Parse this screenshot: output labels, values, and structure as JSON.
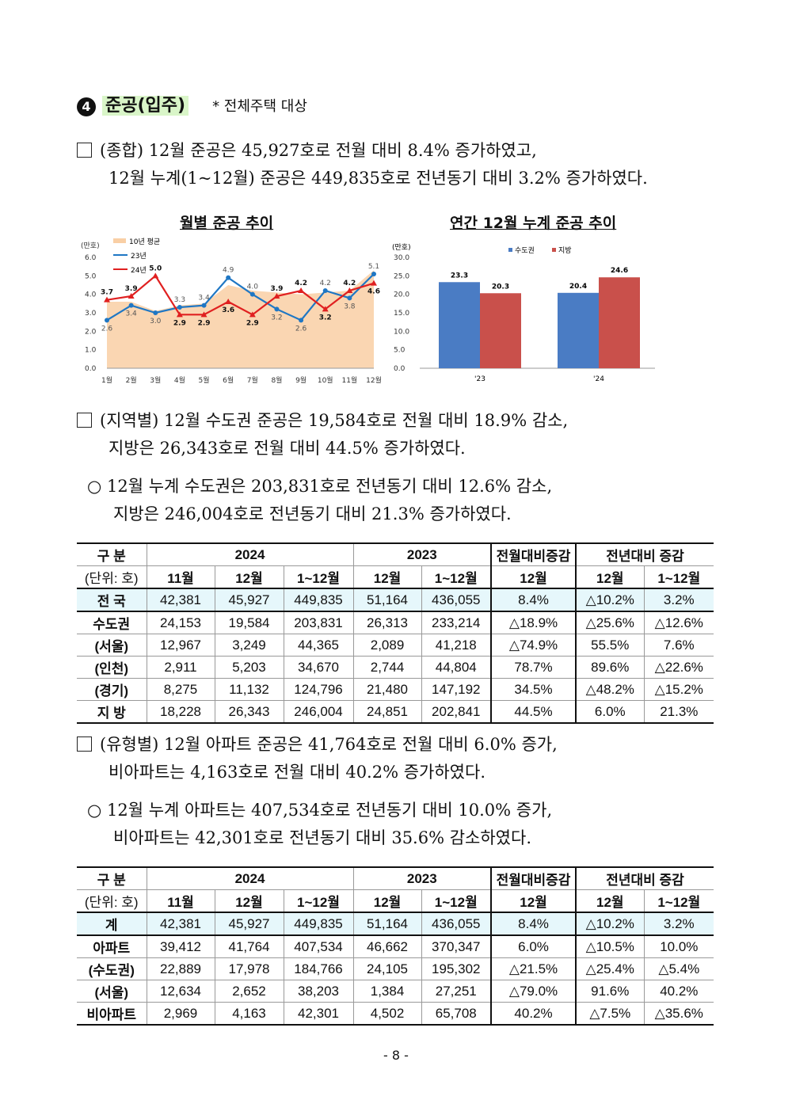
{
  "section": {
    "number": "4",
    "title": "준공(입주)",
    "note": "* 전체주택 대상"
  },
  "para1": {
    "line1": "(종합) 12월 준공은 45,927호로 전월 대비 8.4% 증가하였고,",
    "line2": "12월 누계(1~12월) 준공은 449,835호로 전년동기 대비 3.2% 증가하였다."
  },
  "para2": {
    "line1": "(지역별) 12월 수도권 준공은 19,584호로 전월 대비 18.9% 감소,",
    "line2": "지방은 26,343호로 전월 대비 44.5% 증가하였다."
  },
  "para3": {
    "line1": "12월 누계 수도권은 203,831호로 전년동기 대비 12.6% 감소,",
    "line2": "지방은 246,004호로 전년동기 대비 21.3% 증가하였다."
  },
  "para4": {
    "line1": "(유형별) 12월 아파트 준공은 41,764호로 전월 대비 6.0% 증가,",
    "line2": "비아파트는 4,163호로 전월 대비 40.2% 증가하였다."
  },
  "para5": {
    "line1": "12월 누계 아파트는 407,534호로 전년동기 대비 10.0% 증가,",
    "line2": "비아파트는 42,301호로 전년동기 대비 35.6% 감소하였다."
  },
  "chart_data": [
    {
      "type": "line",
      "title": "월별 준공 추이",
      "unit": "(만호)",
      "ylim": [
        0,
        6
      ],
      "yticks": [
        "0.0",
        "1.0",
        "2.0",
        "3.0",
        "4.0",
        "5.0",
        "6.0"
      ],
      "categories": [
        "1월",
        "2월",
        "3월",
        "4월",
        "5월",
        "6월",
        "7월",
        "8월",
        "9월",
        "10월",
        "11월",
        "12월"
      ],
      "series": [
        {
          "name": "10년 평균",
          "kind": "area",
          "color": "#f9cfa5",
          "values": [
            3.6,
            3.6,
            3.1,
            3.4,
            3.5,
            4.5,
            4.2,
            4.1,
            4.0,
            4.1,
            4.2,
            5.3
          ]
        },
        {
          "name": "23년",
          "color": "#1f77c4",
          "values": [
            2.6,
            3.4,
            3.0,
            3.3,
            3.4,
            4.9,
            4.0,
            3.2,
            2.6,
            4.2,
            3.8,
            5.1
          ]
        },
        {
          "name": "24년",
          "color": "#e02020",
          "values": [
            3.7,
            3.9,
            5.0,
            2.9,
            2.9,
            3.6,
            2.9,
            3.9,
            4.2,
            3.2,
            4.2,
            4.6
          ]
        }
      ]
    },
    {
      "type": "bar",
      "title": "연간 12월 누계 준공 추이",
      "unit": "(만호)",
      "ylim": [
        0,
        30
      ],
      "yticks": [
        "0.0",
        "5.0",
        "10.0",
        "15.0",
        "20.0",
        "25.0",
        "30.0"
      ],
      "categories": [
        "'23",
        "'24"
      ],
      "series": [
        {
          "name": "수도권",
          "color": "#4a7cc4",
          "values": [
            23.3,
            20.4
          ]
        },
        {
          "name": "지방",
          "color": "#c9504b",
          "values": [
            20.3,
            24.6
          ]
        }
      ]
    }
  ],
  "table1": {
    "header1": [
      "구 분",
      "2024",
      "2023",
      "전월대비증감",
      "전년대비 증감"
    ],
    "header2": [
      "(단위: 호)",
      "11월",
      "12월",
      "1~12월",
      "12월",
      "1~12월",
      "12월",
      "12월",
      "1~12월"
    ],
    "rows": [
      [
        "전 국",
        "42,381",
        "45,927",
        "449,835",
        "51,164",
        "436,055",
        "8.4%",
        "△10.2%",
        "3.2%"
      ],
      [
        "수도권",
        "24,153",
        "19,584",
        "203,831",
        "26,313",
        "233,214",
        "△18.9%",
        "△25.6%",
        "△12.6%"
      ],
      [
        "(서울)",
        "12,967",
        "3,249",
        "44,365",
        "2,089",
        "41,218",
        "△74.9%",
        "55.5%",
        "7.6%"
      ],
      [
        "(인천)",
        "2,911",
        "5,203",
        "34,670",
        "2,744",
        "44,804",
        "78.7%",
        "89.6%",
        "△22.6%"
      ],
      [
        "(경기)",
        "8,275",
        "11,132",
        "124,796",
        "21,480",
        "147,192",
        "34.5%",
        "△48.2%",
        "△15.2%"
      ],
      [
        "지 방",
        "18,228",
        "26,343",
        "246,004",
        "24,851",
        "202,841",
        "44.5%",
        "6.0%",
        "21.3%"
      ]
    ]
  },
  "table2": {
    "header1": [
      "구 분",
      "2024",
      "2023",
      "전월대비증감",
      "전년대비 증감"
    ],
    "header2": [
      "(단위: 호)",
      "11월",
      "12월",
      "1~12월",
      "12월",
      "1~12월",
      "12월",
      "12월",
      "1~12월"
    ],
    "rows": [
      [
        "계",
        "42,381",
        "45,927",
        "449,835",
        "51,164",
        "436,055",
        "8.4%",
        "△10.2%",
        "3.2%"
      ],
      [
        "아파트",
        "39,412",
        "41,764",
        "407,534",
        "46,662",
        "370,347",
        "6.0%",
        "△10.5%",
        "10.0%"
      ],
      [
        "(수도권)",
        "22,889",
        "17,978",
        "184,766",
        "24,105",
        "195,302",
        "△21.5%",
        "△25.4%",
        "△5.4%"
      ],
      [
        "(서울)",
        "12,634",
        "2,652",
        "38,203",
        "1,384",
        "27,251",
        "△79.0%",
        "91.6%",
        "40.2%"
      ],
      [
        "비아파트",
        "2,969",
        "4,163",
        "42,301",
        "4,502",
        "65,708",
        "40.2%",
        "△7.5%",
        "△35.6%"
      ]
    ]
  },
  "page_number": "- 8 -"
}
